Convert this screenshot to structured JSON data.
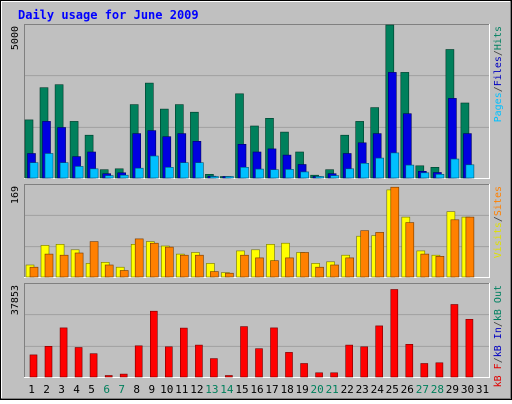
{
  "chart_data": {
    "type": "bar",
    "title": "Daily usage for June 2009",
    "categories": [
      "1",
      "2",
      "3",
      "4",
      "5",
      "6",
      "7",
      "8",
      "9",
      "10",
      "11",
      "12",
      "13",
      "14",
      "15",
      "16",
      "17",
      "18",
      "19",
      "20",
      "21",
      "22",
      "23",
      "24",
      "25",
      "26",
      "27",
      "28",
      "29",
      "30",
      "31"
    ],
    "weekend_days": [
      "6",
      "7",
      "13",
      "14",
      "20",
      "21",
      "27",
      "28"
    ],
    "panels": [
      {
        "name": "top",
        "y_max_label": "5000",
        "y_max": 5000,
        "right_axis_labels": [
          {
            "text": "Pages",
            "color": "#00c0ff"
          },
          {
            "text": "/",
            "color": "#404040"
          },
          {
            "text": "Files",
            "color": "#0000c0"
          },
          {
            "text": "/",
            "color": "#404040"
          },
          {
            "text": "Hits",
            "color": "#008060"
          }
        ],
        "series": [
          {
            "name": "Hits",
            "color": "#00805c",
            "values": [
              1900,
              2950,
              3050,
              1850,
              1400,
              270,
              300,
              2400,
              3100,
              2250,
              2400,
              2150,
              120,
              40,
              2750,
              1700,
              1950,
              1500,
              850,
              90,
              270,
              1400,
              1850,
              2300,
              5000,
              3450,
              400,
              350,
              4200,
              2450,
              0
            ]
          },
          {
            "name": "Files",
            "color": "#0000e0",
            "values": [
              800,
              1850,
              1650,
              700,
              850,
              140,
              170,
              1450,
              1550,
              1350,
              1450,
              1200,
              60,
              25,
              1100,
              850,
              950,
              750,
              440,
              45,
              140,
              800,
              1150,
              1450,
              3450,
              2100,
              220,
              180,
              2600,
              1450,
              0
            ]
          },
          {
            "name": "Pages",
            "color": "#00c0ff",
            "values": [
              500,
              800,
              500,
              380,
              300,
              80,
              90,
              320,
              720,
              350,
              500,
              500,
              30,
              15,
              350,
              290,
              270,
              280,
              200,
              25,
              80,
              300,
              480,
              650,
              820,
              420,
              170,
              120,
              620,
              430,
              0
            ]
          }
        ]
      },
      {
        "name": "middle",
        "y_max_label": "169",
        "y_max": 169,
        "right_axis_labels": [
          {
            "text": "Visits",
            "color": "#e0e000"
          },
          {
            "text": "/",
            "color": "#404040"
          },
          {
            "text": "Sites",
            "color": "#ff8000"
          }
        ],
        "series": [
          {
            "name": "Visits",
            "color": "#ffff00",
            "values": [
              22,
              58,
              60,
              50,
              25,
              27,
              18,
              60,
              65,
              57,
              42,
              45,
              25,
              8,
              48,
              50,
              60,
              62,
              45,
              25,
              28,
              40,
              75,
              76,
              160,
              110,
              48,
              40,
              120,
              110,
              0
            ]
          },
          {
            "name": "Sites",
            "color": "#ff8000",
            "values": [
              18,
              42,
              40,
              44,
              65,
              22,
              12,
              70,
              62,
              55,
              40,
              40,
              10,
              7,
              40,
              35,
              30,
              35,
              45,
              18,
              22,
              35,
              85,
              82,
              165,
              100,
              42,
              38,
              105,
              110,
              0
            ]
          }
        ]
      },
      {
        "name": "bottom",
        "y_max_label": "37853",
        "y_max": 37853,
        "right_axis_labels": [
          {
            "text": "kB F",
            "color": "#e00000"
          },
          {
            "text": "/",
            "color": "#404040"
          },
          {
            "text": "kB In",
            "color": "#0000c0"
          },
          {
            "text": "/",
            "color": "#404040"
          },
          {
            "text": "kB Out",
            "color": "#008060"
          }
        ],
        "series": [
          {
            "name": "kB F",
            "color": "#ff0000",
            "values": [
              9000,
              12500,
              20000,
              12000,
              9500,
              500,
              1200,
              12700,
              26800,
              12300,
              19900,
              13000,
              7500,
              150,
              20500,
              11500,
              20000,
              10000,
              5500,
              1700,
              1700,
              13000,
              12300,
              20800,
              35600,
              13300,
              5500,
              5800,
              29500,
              23500,
              0
            ]
          }
        ]
      }
    ]
  }
}
